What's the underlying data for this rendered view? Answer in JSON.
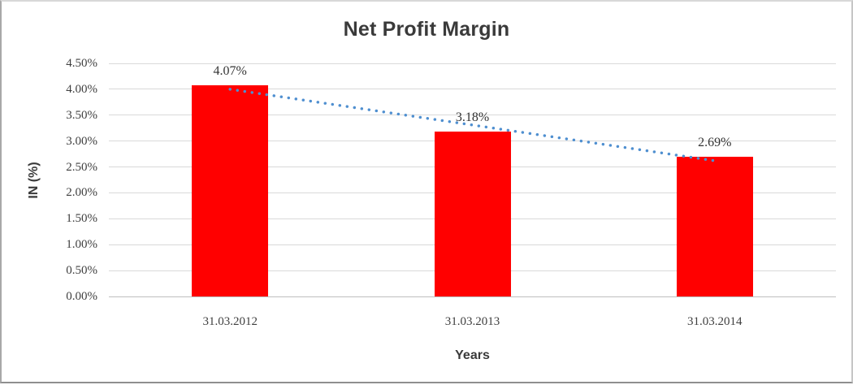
{
  "chart_data": {
    "type": "bar",
    "title": "Net Profit Margin",
    "xlabel": "Years",
    "ylabel": "IN (%)",
    "categories": [
      "31.03.2012",
      "31.03.2013",
      "31.03.2014"
    ],
    "values": [
      4.07,
      3.18,
      2.69
    ],
    "data_labels": [
      "4.07%",
      "3.18%",
      "2.69%"
    ],
    "ylim": [
      0,
      4.5
    ],
    "y_tick_step": 0.5,
    "y_tick_labels": [
      "0.00%",
      "0.50%",
      "1.00%",
      "1.50%",
      "2.00%",
      "2.50%",
      "3.00%",
      "3.50%",
      "4.00%",
      "4.50%"
    ],
    "grid": true,
    "legend": "none",
    "bar_color": "#ff0000",
    "gridline_color": "#d9d9d9",
    "baseline_color": "#bfbfbf",
    "trendline": {
      "type": "linear",
      "style": "dotted",
      "color": "#4f8fd0",
      "endpoint_values": [
        4.0,
        2.62
      ]
    }
  }
}
